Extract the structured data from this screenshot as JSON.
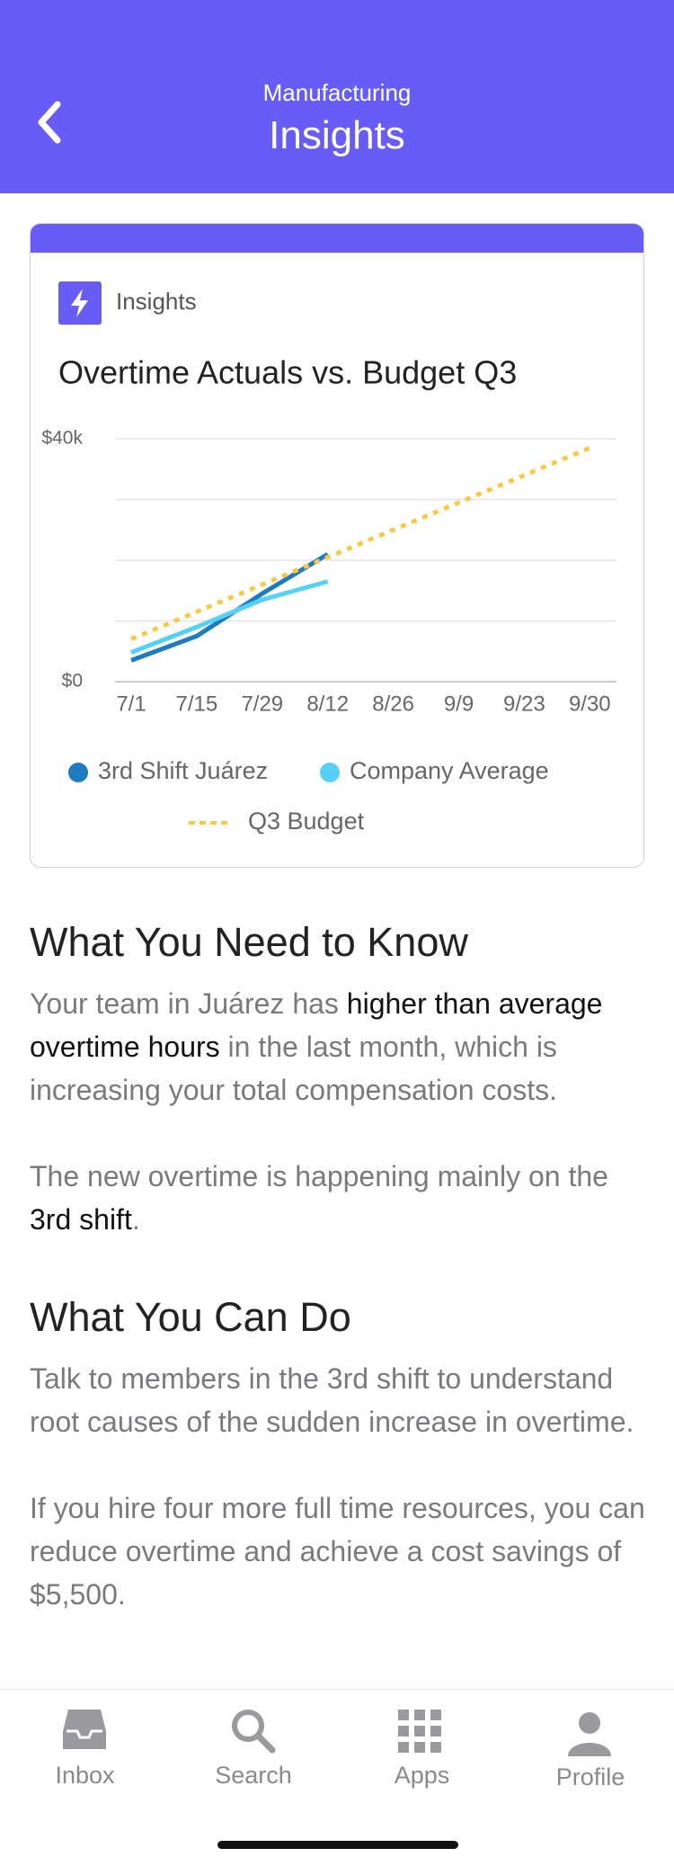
{
  "header": {
    "subtitle": "Manufacturing",
    "title": "Insights"
  },
  "card_label": "Insights",
  "chart_data": {
    "type": "line",
    "title": "Overtime Actuals vs. Budget Q3",
    "categories": [
      "7/1",
      "7/15",
      "7/29",
      "8/12",
      "8/26",
      "9/9",
      "9/23",
      "9/30"
    ],
    "series": [
      {
        "name": "3rd Shift Juárez",
        "color": "#1f7bbf",
        "dash": false,
        "values": [
          3500,
          7500,
          14500,
          21000,
          null,
          null,
          null,
          null
        ]
      },
      {
        "name": "Company Average",
        "color": "#56d0f5",
        "dash": false,
        "values": [
          4800,
          9000,
          13500,
          16500,
          null,
          null,
          null,
          null
        ]
      },
      {
        "name": "Q3 Budget",
        "color": "#f7c948",
        "dash": true,
        "values": [
          7000,
          11500,
          16000,
          20500,
          25000,
          29500,
          34000,
          38500
        ]
      }
    ],
    "ylim": [
      0,
      40000
    ],
    "yticks": [
      {
        "value": 0,
        "label": "$0"
      },
      {
        "value": 10000,
        "label": null
      },
      {
        "value": 20000,
        "label": null
      },
      {
        "value": 30000,
        "label": null
      },
      {
        "value": 40000,
        "label": "$40k"
      }
    ],
    "grid": true
  },
  "sections": [
    {
      "heading": "What You Need to Know",
      "paragraphs": [
        [
          {
            "text": "Your team in Juárez has ",
            "strong": false
          },
          {
            "text": "higher than average overtime hours",
            "strong": true
          },
          {
            "text": " in the last month, which is increasing your total compensation costs.",
            "strong": false
          }
        ],
        [
          {
            "text": "The new overtime is happening mainly on the ",
            "strong": false
          },
          {
            "text": "3rd shift",
            "strong": true
          },
          {
            "text": ".",
            "strong": false
          }
        ]
      ]
    },
    {
      "heading": "What You Can Do",
      "paragraphs": [
        [
          {
            "text": "Talk to members in the 3rd shift to understand root causes of the sudden increase in overtime.",
            "strong": false
          }
        ],
        [
          {
            "text": "If you hire four more full time resources, you can reduce overtime and achieve a cost savings of $5,500.",
            "strong": false
          }
        ]
      ]
    }
  ],
  "tab_bar": [
    "Inbox",
    "Search",
    "Apps",
    "Profile"
  ]
}
